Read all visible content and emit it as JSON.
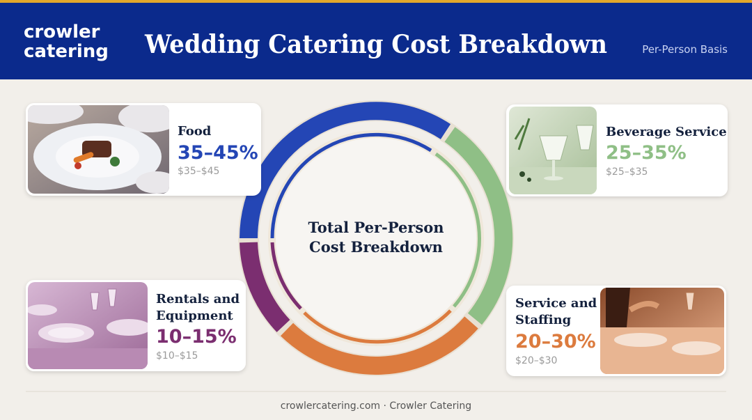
{
  "header": {
    "logo_lines": [
      "crowler",
      "catering"
    ],
    "title": "Wedding Catering Cost Breakdown",
    "subtitle": "Per-Person Basis"
  },
  "center": {
    "title_lines": [
      "Total Per-Person",
      "Cost Breakdown"
    ]
  },
  "cards": [
    {
      "title_lines": [
        "Food"
      ],
      "range": "35–45%",
      "price": "$35–$45"
    },
    {
      "title_lines": [
        "Beverage Service"
      ],
      "range": "25–35%",
      "price": "$25–$35"
    },
    {
      "title_lines": [
        "Rentals and",
        "Equipment"
      ],
      "range": "10–15%",
      "price": "$10–$15"
    },
    {
      "title_lines": [
        "Service and",
        "Staffing"
      ],
      "range": "20–30%",
      "price": "$20–$30"
    }
  ],
  "footer": "crowlercatering.com · Crowler Catering"
}
